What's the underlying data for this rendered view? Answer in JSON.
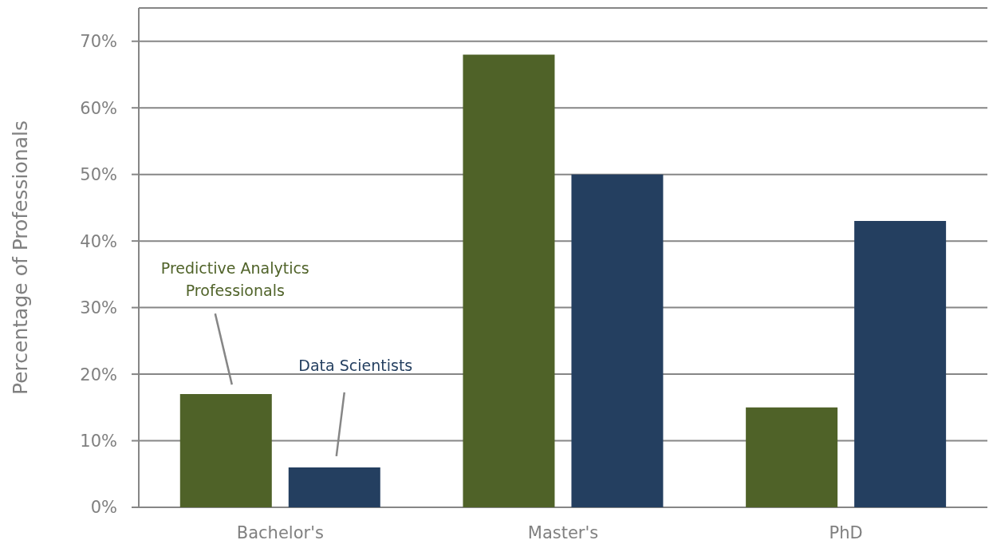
{
  "chart_data": {
    "type": "bar",
    "ylabel": "Percentage of Professionals",
    "categories": [
      "Bachelor's",
      "Master's",
      "PhD"
    ],
    "series": [
      {
        "name": "Predictive Analytics Professionals",
        "color": "#4f6228",
        "values": [
          17,
          68,
          15
        ]
      },
      {
        "name": "Data Scientists",
        "color": "#243f60",
        "values": [
          6,
          50,
          43
        ]
      }
    ],
    "ylim": [
      0,
      75
    ],
    "yticks": [
      {
        "value": 0,
        "label": "0%"
      },
      {
        "value": 10,
        "label": "10%"
      },
      {
        "value": 20,
        "label": "20%"
      },
      {
        "value": 30,
        "label": "30%"
      },
      {
        "value": 40,
        "label": "40%"
      },
      {
        "value": 50,
        "label": "50%"
      },
      {
        "value": 60,
        "label": "60%"
      },
      {
        "value": 70,
        "label": "70%"
      }
    ],
    "grid": "y"
  }
}
